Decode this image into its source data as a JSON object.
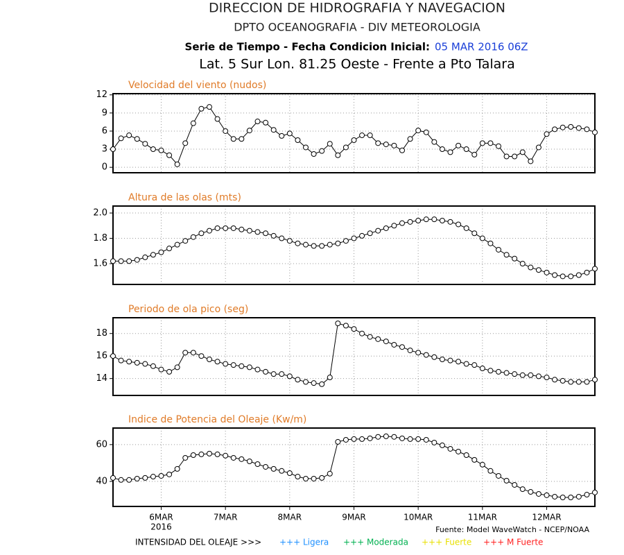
{
  "header": {
    "title": "DIRECCION DE HIDROGRAFIA Y NAVEGACION",
    "subtitle": "DPTO OCEANOGRAFIA - DIV METEOROLOGIA",
    "series_label": "Serie de Tiempo - Fecha Condicion Inicial:",
    "init_date": "05 MAR 2016 06Z",
    "location": "Lat. 5 Sur  Lon. 81.25 Oeste - Frente a Pto Talara"
  },
  "chart_data": [
    {
      "type": "line",
      "title": "Velocidad del viento (nudos)",
      "color": "#000000",
      "grid": true,
      "ylim": [
        -0.9,
        12.2
      ],
      "yticks": [
        0,
        3,
        6,
        9,
        12
      ],
      "values": [
        3.0,
        4.8,
        5.3,
        4.7,
        3.9,
        3.0,
        2.8,
        2.0,
        0.5,
        4.0,
        7.3,
        9.7,
        10.0,
        8.0,
        6.0,
        4.7,
        4.7,
        6.1,
        7.6,
        7.4,
        6.2,
        5.2,
        5.6,
        4.5,
        3.3,
        2.2,
        2.7,
        3.9,
        2.0,
        3.3,
        4.5,
        5.3,
        5.3,
        4.0,
        3.8,
        3.6,
        2.8,
        4.7,
        6.1,
        5.8,
        4.2,
        3.0,
        2.5,
        3.6,
        3.0,
        2.1,
        4.0,
        4.0,
        3.5,
        1.8,
        1.8,
        2.5,
        1.0,
        3.3,
        5.5,
        6.3,
        6.6,
        6.7,
        6.5,
        6.3,
        5.8
      ]
    },
    {
      "type": "line",
      "title": "Altura de las olas (mts)",
      "color": "#000000",
      "grid": true,
      "ylim": [
        1.436,
        2.055
      ],
      "yticks": [
        {
          "value": 1.6,
          "label": "1.6"
        },
        {
          "value": 1.8,
          "label": "1.8"
        },
        {
          "value": 2.0,
          "label": "2.0"
        }
      ],
      "values": [
        1.62,
        1.62,
        1.62,
        1.63,
        1.65,
        1.67,
        1.69,
        1.72,
        1.75,
        1.78,
        1.81,
        1.84,
        1.86,
        1.88,
        1.88,
        1.88,
        1.87,
        1.86,
        1.85,
        1.84,
        1.82,
        1.8,
        1.78,
        1.76,
        1.75,
        1.74,
        1.74,
        1.75,
        1.76,
        1.78,
        1.8,
        1.82,
        1.84,
        1.86,
        1.88,
        1.9,
        1.92,
        1.93,
        1.94,
        1.95,
        1.95,
        1.94,
        1.93,
        1.91,
        1.88,
        1.84,
        1.8,
        1.76,
        1.71,
        1.67,
        1.64,
        1.6,
        1.57,
        1.55,
        1.53,
        1.51,
        1.5,
        1.5,
        1.51,
        1.53,
        1.56
      ]
    },
    {
      "type": "line",
      "title": "Periodo de ola pico (seg)",
      "color": "#000000",
      "grid": true,
      "ylim": [
        12.5,
        19.4
      ],
      "yticks": [
        14,
        16,
        18
      ],
      "values": [
        16.0,
        15.6,
        15.5,
        15.4,
        15.3,
        15.1,
        14.8,
        14.6,
        15.0,
        16.3,
        16.3,
        16.0,
        15.7,
        15.5,
        15.3,
        15.2,
        15.1,
        15.0,
        14.8,
        14.6,
        14.4,
        14.4,
        14.2,
        13.9,
        13.7,
        13.6,
        13.5,
        14.1,
        18.9,
        18.7,
        18.4,
        18.0,
        17.7,
        17.5,
        17.3,
        17.0,
        16.8,
        16.5,
        16.3,
        16.1,
        15.9,
        15.7,
        15.6,
        15.5,
        15.3,
        15.2,
        14.9,
        14.7,
        14.6,
        14.5,
        14.4,
        14.3,
        14.3,
        14.2,
        14.1,
        13.9,
        13.8,
        13.7,
        13.7,
        13.7,
        13.9
      ]
    },
    {
      "type": "line",
      "title": "Indice de Potencia del Oleaje (Kw/m)",
      "color": "#000000",
      "grid": true,
      "ylim": [
        26.4,
        69
      ],
      "yticks": [
        40,
        60
      ],
      "categories": [
        null,
        null,
        null,
        null,
        null,
        null,
        "6MAR",
        null,
        null,
        null,
        null,
        null,
        null,
        null,
        "7MAR",
        null,
        null,
        null,
        null,
        null,
        null,
        null,
        "8MAR",
        null,
        null,
        null,
        null,
        null,
        null,
        null,
        "9MAR",
        null,
        null,
        null,
        null,
        null,
        null,
        null,
        "10MAR",
        null,
        null,
        null,
        null,
        null,
        null,
        null,
        "11MAR",
        null,
        null,
        null,
        null,
        null,
        null,
        null,
        "12MAR",
        null,
        null,
        null,
        null,
        null,
        null
      ],
      "year_label": "2016",
      "values": [
        41.9,
        40.8,
        40.8,
        41.5,
        41.9,
        42.6,
        43.0,
        43.8,
        46.8,
        52.8,
        54.3,
        54.7,
        55.1,
        54.7,
        54.0,
        52.8,
        52.1,
        50.9,
        49.4,
        47.9,
        46.8,
        45.7,
        44.5,
        42.6,
        41.5,
        41.5,
        41.9,
        44.2,
        61.5,
        62.6,
        63.0,
        63.0,
        63.4,
        64.2,
        64.5,
        64.2,
        63.4,
        63.0,
        63.0,
        62.6,
        61.1,
        59.6,
        57.7,
        56.2,
        54.3,
        51.7,
        49.1,
        45.7,
        43.0,
        40.4,
        38.1,
        35.8,
        34.3,
        33.2,
        32.5,
        31.7,
        31.3,
        31.3,
        31.7,
        32.8,
        34.0
      ]
    }
  ],
  "footer": {
    "source": "Fuente: Model WaveWatch - NCEP/NOAA",
    "intensity_label": "INTENSIDAD DEL OLEAJE >>>",
    "legend": [
      {
        "label": "+++ Ligera",
        "color": "#1e90ff"
      },
      {
        "label": "+++ Moderada",
        "color": "#00b050"
      },
      {
        "label": "+++ Fuerte",
        "color": "#e8e000"
      },
      {
        "label": "+++ M Fuerte",
        "color": "#ff2020"
      }
    ]
  }
}
